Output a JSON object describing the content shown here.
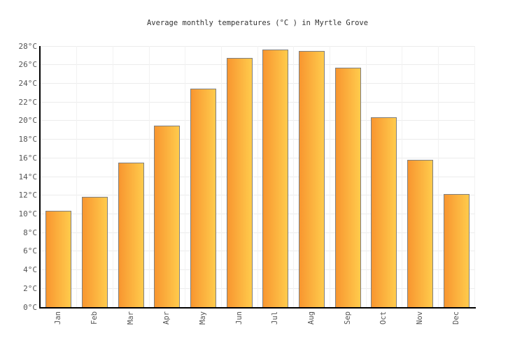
{
  "chart_data": {
    "type": "bar",
    "title": "Average monthly temperatures (°C ) in Myrtle Grove",
    "categories": [
      "Jan",
      "Feb",
      "Mar",
      "Apr",
      "May",
      "Jun",
      "Jul",
      "Aug",
      "Sep",
      "Oct",
      "Nov",
      "Dec"
    ],
    "values": [
      10.3,
      11.8,
      15.5,
      19.5,
      23.4,
      26.7,
      27.6,
      27.5,
      25.7,
      20.4,
      15.8,
      12.1
    ],
    "unit": "°C",
    "xlabel": "",
    "ylabel": "",
    "ylim": [
      0,
      28
    ],
    "ytick_step": 2,
    "yticks": [
      "0°C",
      "2°C",
      "4°C",
      "6°C",
      "8°C",
      "10°C",
      "12°C",
      "14°C",
      "16°C",
      "18°C",
      "20°C",
      "22°C",
      "24°C",
      "26°C",
      "28°C"
    ],
    "grid": true,
    "legend": false,
    "x_labels_rotated": true,
    "colors": {
      "background": "#ffffff",
      "bar_gradient_left": "#f89630",
      "bar_gradient_right": "#ffcb4c",
      "bar_border": "#7f7f7f",
      "axis": "#000000",
      "gridline_h": "#ececec",
      "gridline_v": "#f2f2f2",
      "tick_label": "#555555",
      "title": "#333333"
    }
  }
}
